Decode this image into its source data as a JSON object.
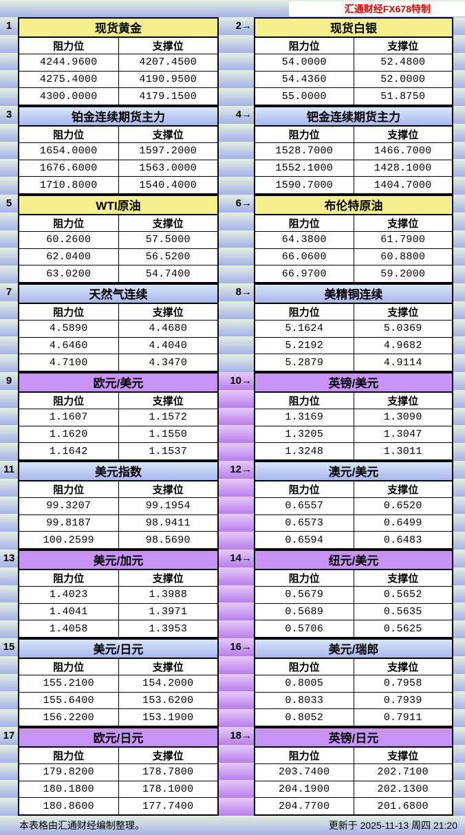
{
  "header": {
    "brand": "汇通财经FX678特制"
  },
  "labels": {
    "resistance": "阻力位",
    "support": "支撑位"
  },
  "colors": {
    "yellow": "#f6f08c",
    "purple": "#c893f7",
    "blue_title_top": "#d8e6f8",
    "blue_title_bottom": "#a8b7ee",
    "bg_gradient_top": "#e4efde",
    "bg_gradient_bottom": "#a4b1e9",
    "gutter_purple_top": "#e7cafa",
    "gutter_purple_bottom": "#b87eea",
    "brand_red": "#e60000"
  },
  "blocks": [
    {
      "gutter_style": "green",
      "left": {
        "label": "1",
        "title": "现货黄金",
        "style": "yellow",
        "rows": [
          [
            "4244.9600",
            "4207.4500"
          ],
          [
            "4275.4000",
            "4190.9500"
          ],
          [
            "4300.0000",
            "4179.1500"
          ]
        ]
      },
      "right": {
        "label": "2→",
        "title": "现货白银",
        "style": "yellow",
        "rows": [
          [
            "54.0000",
            "52.4800"
          ],
          [
            "54.4360",
            "52.0000"
          ],
          [
            "55.0000",
            "51.8750"
          ]
        ]
      }
    },
    {
      "gutter_style": "green",
      "left": {
        "label": "3",
        "title": "铂金连续期货主力",
        "style": "blue",
        "rows": [
          [
            "1654.0000",
            "1597.2000"
          ],
          [
            "1676.6000",
            "1563.0000"
          ],
          [
            "1710.8000",
            "1540.4000"
          ]
        ]
      },
      "right": {
        "label": "4→",
        "title": "钯金连续期货主力",
        "style": "blue",
        "rows": [
          [
            "1528.7000",
            "1466.7000"
          ],
          [
            "1552.1000",
            "1428.1000"
          ],
          [
            "1590.7000",
            "1404.7000"
          ]
        ]
      }
    },
    {
      "gutter_style": "green",
      "left": {
        "label": "5",
        "title": "WTI原油",
        "style": "yellow",
        "rows": [
          [
            "60.2600",
            "57.5000"
          ],
          [
            "62.0400",
            "56.5200"
          ],
          [
            "63.0200",
            "54.7400"
          ]
        ]
      },
      "right": {
        "label": "6→",
        "title": "布伦特原油",
        "style": "yellow",
        "rows": [
          [
            "64.3800",
            "61.7900"
          ],
          [
            "66.0600",
            "60.8800"
          ],
          [
            "66.9700",
            "59.2000"
          ]
        ]
      }
    },
    {
      "gutter_style": "green",
      "left": {
        "label": "7",
        "title": "天然气连续",
        "style": "blue",
        "rows": [
          [
            "4.5890",
            "4.4680"
          ],
          [
            "4.6460",
            "4.4040"
          ],
          [
            "4.7100",
            "4.3470"
          ]
        ]
      },
      "right": {
        "label": "8→",
        "title": "美精铜连续",
        "style": "blue",
        "rows": [
          [
            "5.1624",
            "5.0369"
          ],
          [
            "5.2192",
            "4.9682"
          ],
          [
            "5.2879",
            "4.9114"
          ]
        ]
      }
    },
    {
      "gutter_style": "purple",
      "left": {
        "label": "9",
        "title": "欧元/美元",
        "style": "purple",
        "rows": [
          [
            "1.1607",
            "1.1572"
          ],
          [
            "1.1620",
            "1.1550"
          ],
          [
            "1.1642",
            "1.1537"
          ]
        ]
      },
      "right": {
        "label": "10→",
        "title": "英镑/美元",
        "style": "purple",
        "rows": [
          [
            "1.3169",
            "1.3090"
          ],
          [
            "1.3205",
            "1.3047"
          ],
          [
            "1.3248",
            "1.3011"
          ]
        ]
      }
    },
    {
      "gutter_style": "purple",
      "left": {
        "label": "11",
        "title": "美元指数",
        "style": "blue",
        "rows": [
          [
            "99.3207",
            "99.1954"
          ],
          [
            "99.8187",
            "98.9411"
          ],
          [
            "100.2599",
            "98.5690"
          ]
        ]
      },
      "right": {
        "label": "12→",
        "title": "澳元/美元",
        "style": "blue",
        "rows": [
          [
            "0.6557",
            "0.6520"
          ],
          [
            "0.6573",
            "0.6499"
          ],
          [
            "0.6594",
            "0.6483"
          ]
        ]
      }
    },
    {
      "gutter_style": "purple",
      "left": {
        "label": "13",
        "title": "美元/加元",
        "style": "purple",
        "rows": [
          [
            "1.4023",
            "1.3988"
          ],
          [
            "1.4041",
            "1.3971"
          ],
          [
            "1.4058",
            "1.3953"
          ]
        ]
      },
      "right": {
        "label": "14→",
        "title": "纽元/美元",
        "style": "purple",
        "rows": [
          [
            "0.5679",
            "0.5652"
          ],
          [
            "0.5689",
            "0.5635"
          ],
          [
            "0.5706",
            "0.5625"
          ]
        ]
      }
    },
    {
      "gutter_style": "purple",
      "left": {
        "label": "15",
        "title": "美元/日元",
        "style": "blue",
        "rows": [
          [
            "155.2100",
            "154.2000"
          ],
          [
            "155.6400",
            "153.6200"
          ],
          [
            "156.2200",
            "153.1900"
          ]
        ]
      },
      "right": {
        "label": "16→",
        "title": "美元/瑞郎",
        "style": "blue",
        "rows": [
          [
            "0.8005",
            "0.7958"
          ],
          [
            "0.8033",
            "0.7939"
          ],
          [
            "0.8052",
            "0.7911"
          ]
        ]
      }
    },
    {
      "gutter_style": "purple",
      "left": {
        "label": "17",
        "title": "欧元/日元",
        "style": "purple",
        "rows": [
          [
            "179.8200",
            "178.7800"
          ],
          [
            "180.1800",
            "178.1000"
          ],
          [
            "180.8600",
            "177.7400"
          ]
        ]
      },
      "right": {
        "label": "18→",
        "title": "英镑/日元",
        "style": "purple",
        "rows": [
          [
            "203.7400",
            "202.7100"
          ],
          [
            "204.1900",
            "202.1300"
          ],
          [
            "204.7700",
            "201.6800"
          ]
        ]
      }
    }
  ],
  "footer": {
    "left": "本表格由汇通财经编制整理。",
    "right": "更新于 2025-11-13 周四 21:20"
  }
}
